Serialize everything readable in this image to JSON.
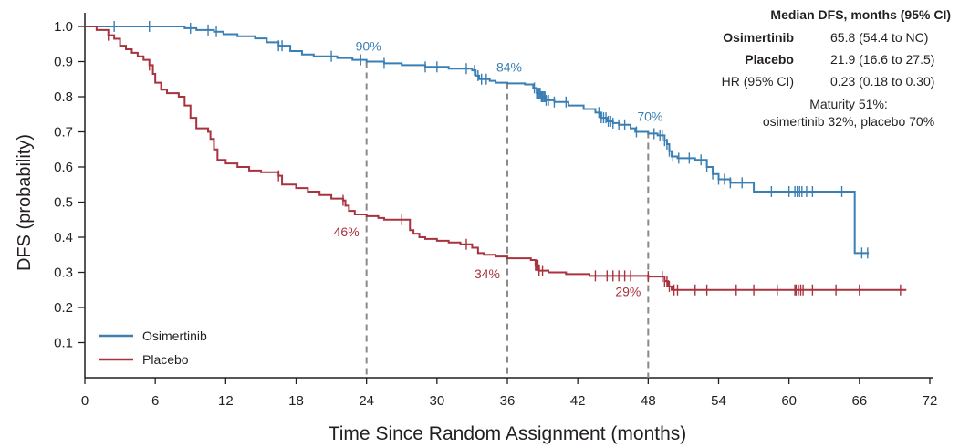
{
  "chart_data": {
    "type": "line",
    "title": "",
    "xlabel": "Time Since Random Assignment (months)",
    "ylabel": "DFS (probability)",
    "xlim": [
      0,
      72
    ],
    "ylim": [
      0,
      1.0
    ],
    "x_ticks": [
      0,
      6,
      12,
      18,
      24,
      30,
      36,
      42,
      48,
      54,
      60,
      66,
      72
    ],
    "y_ticks": [
      0.1,
      0.2,
      0.3,
      0.4,
      0.5,
      0.6,
      0.7,
      0.8,
      0.9,
      1.0
    ],
    "grid": false,
    "legend_position": "bottom-left",
    "series": [
      {
        "name": "Osimertinib",
        "color": "#3a7fb4",
        "steps": [
          [
            0,
            1.0
          ],
          [
            8.5,
            0.995
          ],
          [
            9.5,
            0.99
          ],
          [
            11,
            0.985
          ],
          [
            11.8,
            0.978
          ],
          [
            13,
            0.972
          ],
          [
            14.5,
            0.966
          ],
          [
            15.5,
            0.955
          ],
          [
            16.5,
            0.945
          ],
          [
            17.5,
            0.93
          ],
          [
            18.5,
            0.92
          ],
          [
            19.5,
            0.915
          ],
          [
            21.5,
            0.91
          ],
          [
            22.8,
            0.905
          ],
          [
            24,
            0.9
          ],
          [
            25.5,
            0.895
          ],
          [
            27,
            0.89
          ],
          [
            29,
            0.885
          ],
          [
            31,
            0.88
          ],
          [
            33,
            0.875
          ],
          [
            33.3,
            0.86
          ],
          [
            33.6,
            0.85
          ],
          [
            34.5,
            0.845
          ],
          [
            35,
            0.84
          ],
          [
            36,
            0.838
          ],
          [
            37.5,
            0.835
          ],
          [
            38.2,
            0.825
          ],
          [
            38.5,
            0.81
          ],
          [
            38.9,
            0.8
          ],
          [
            39.3,
            0.79
          ],
          [
            40,
            0.785
          ],
          [
            41.2,
            0.775
          ],
          [
            42.5,
            0.765
          ],
          [
            43.5,
            0.755
          ],
          [
            44,
            0.74
          ],
          [
            44.5,
            0.73
          ],
          [
            45,
            0.725
          ],
          [
            45.5,
            0.72
          ],
          [
            46.5,
            0.71
          ],
          [
            46.9,
            0.7
          ],
          [
            48,
            0.695
          ],
          [
            48.8,
            0.69
          ],
          [
            49.4,
            0.675
          ],
          [
            49.6,
            0.665
          ],
          [
            49.8,
            0.645
          ],
          [
            50,
            0.63
          ],
          [
            50.5,
            0.625
          ],
          [
            52,
            0.62
          ],
          [
            53,
            0.6
          ],
          [
            53.5,
            0.58
          ],
          [
            54,
            0.565
          ],
          [
            55,
            0.555
          ],
          [
            57,
            0.53
          ],
          [
            65.3,
            0.53
          ],
          [
            65.6,
            0.355
          ],
          [
            66.8,
            0.355
          ]
        ],
        "censor_x": [
          2.5,
          5.5,
          9,
          10.5,
          11.2,
          16.5,
          16.8,
          21,
          23.5,
          25.5,
          29,
          30,
          32.5,
          33.2,
          33.5,
          33.8,
          34.2,
          38.3,
          38.5,
          38.6,
          38.7,
          38.8,
          38.9,
          39,
          39.1,
          39.2,
          39.3,
          39.5,
          40,
          41,
          43.8,
          44,
          44.2,
          44.4,
          44.6,
          44.8,
          45,
          45.5,
          46,
          47,
          48.5,
          49,
          49.2,
          49.4,
          49.6,
          49.8,
          50.1,
          50.6,
          51.5,
          52.5,
          53,
          53.5,
          54,
          54.5,
          55,
          56,
          58.5,
          60,
          60.5,
          60.7,
          60.9,
          61.1,
          61.5,
          62,
          64.5,
          66.2,
          66.7
        ],
        "at_risk": []
      },
      {
        "name": "Placebo",
        "color": "#a8323e",
        "steps": [
          [
            0,
            1.0
          ],
          [
            1,
            0.99
          ],
          [
            2,
            0.975
          ],
          [
            2.5,
            0.965
          ],
          [
            3,
            0.945
          ],
          [
            3.5,
            0.935
          ],
          [
            4,
            0.925
          ],
          [
            4.5,
            0.915
          ],
          [
            5,
            0.905
          ],
          [
            5.5,
            0.89
          ],
          [
            5.8,
            0.865
          ],
          [
            6,
            0.84
          ],
          [
            6.5,
            0.82
          ],
          [
            7,
            0.81
          ],
          [
            8,
            0.8
          ],
          [
            8.5,
            0.775
          ],
          [
            9,
            0.74
          ],
          [
            9.5,
            0.71
          ],
          [
            10.5,
            0.7
          ],
          [
            10.7,
            0.68
          ],
          [
            11,
            0.65
          ],
          [
            11.3,
            0.62
          ],
          [
            12,
            0.61
          ],
          [
            13,
            0.6
          ],
          [
            14,
            0.59
          ],
          [
            15,
            0.585
          ],
          [
            16.5,
            0.575
          ],
          [
            16.8,
            0.55
          ],
          [
            18,
            0.54
          ],
          [
            19,
            0.53
          ],
          [
            20,
            0.52
          ],
          [
            21,
            0.51
          ],
          [
            22,
            0.505
          ],
          [
            22.2,
            0.49
          ],
          [
            22.5,
            0.475
          ],
          [
            23,
            0.465
          ],
          [
            24,
            0.46
          ],
          [
            25,
            0.455
          ],
          [
            25.5,
            0.45
          ],
          [
            27.5,
            0.45
          ],
          [
            27.7,
            0.42
          ],
          [
            28,
            0.41
          ],
          [
            28.5,
            0.4
          ],
          [
            29,
            0.395
          ],
          [
            30,
            0.39
          ],
          [
            31,
            0.385
          ],
          [
            32,
            0.38
          ],
          [
            33,
            0.37
          ],
          [
            33.5,
            0.355
          ],
          [
            34,
            0.35
          ],
          [
            35,
            0.345
          ],
          [
            36,
            0.34
          ],
          [
            38,
            0.335
          ],
          [
            38.4,
            0.32
          ],
          [
            38.7,
            0.305
          ],
          [
            39.5,
            0.3
          ],
          [
            41,
            0.295
          ],
          [
            43,
            0.29
          ],
          [
            48,
            0.288
          ],
          [
            49.4,
            0.275
          ],
          [
            49.7,
            0.26
          ],
          [
            50,
            0.25
          ],
          [
            70,
            0.25
          ]
        ],
        "censor_x": [
          2,
          5.5,
          16.5,
          22,
          27,
          32.5,
          38.4,
          38.5,
          38.6,
          38.7,
          39,
          43.5,
          44.5,
          45,
          45.5,
          46,
          46.5,
          48,
          49.2,
          49.4,
          49.6,
          49.8,
          50.2,
          50.5,
          52,
          53,
          55.5,
          57,
          59,
          60.5,
          60.6,
          60.8,
          61,
          61.2,
          62,
          64,
          66,
          69.5
        ],
        "at_risk": []
      }
    ],
    "landmarks": [
      {
        "x": 24,
        "labels": [
          {
            "series": "Osimertinib",
            "text": "90%",
            "y": 0.9
          },
          {
            "series": "Placebo",
            "text": "46%",
            "y": 0.46
          }
        ]
      },
      {
        "x": 36,
        "labels": [
          {
            "series": "Osimertinib",
            "text": "84%",
            "y": 0.84
          },
          {
            "series": "Placebo",
            "text": "34%",
            "y": 0.34
          }
        ]
      },
      {
        "x": 48,
        "labels": [
          {
            "series": "Osimertinib",
            "text": "70%",
            "y": 0.7
          },
          {
            "series": "Placebo",
            "text": "29%",
            "y": 0.29
          }
        ]
      }
    ]
  },
  "summary_table": {
    "header": "Median DFS, months (95% CI)",
    "rows": [
      {
        "label": "Osimertinib",
        "value": "65.8 (54.4 to NC)",
        "bold": true
      },
      {
        "label": "Placebo",
        "value": "21.9 (16.6 to 27.5)",
        "bold": true
      },
      {
        "label": "HR (95% CI)",
        "value": "0.23 (0.18 to 0.30)",
        "bold": false
      }
    ],
    "note_line1": "Maturity 51%:",
    "note_line2": "osimertinib 32%, placebo 70%"
  },
  "colors": {
    "axis": "#231f20",
    "landmark_line": "#8a8a8a"
  }
}
